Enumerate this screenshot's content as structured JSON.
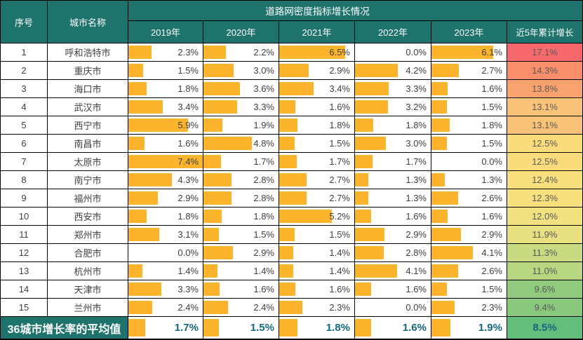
{
  "header": {
    "col_no": "序号",
    "col_city": "城市名称",
    "group_title": "道路网密度指标增长情况",
    "year_cols": [
      "2019年",
      "2020年",
      "2021年",
      "2022年",
      "2023年"
    ],
    "col_total": "近5年累计增长"
  },
  "colors": {
    "header_bg": "#1E736C",
    "bar": "#FBB42C",
    "grid": "#000000",
    "footer_text": "#15697E",
    "value_text": "#3F3F3F",
    "total_text": "#595959",
    "footer_total_bg": "#63BE7B"
  },
  "bar_scale_max": 7.4,
  "rows": [
    {
      "no": "1",
      "city": "呼和浩特市",
      "values": [
        "2.3%",
        "2.2%",
        "6.5%",
        "0.0%",
        "6.1%"
      ],
      "nums": [
        2.3,
        2.2,
        6.5,
        0.0,
        6.1
      ],
      "total": "17.1%",
      "total_bg": "#F8696B"
    },
    {
      "no": "2",
      "city": "重庆市",
      "values": [
        "1.5%",
        "3.0%",
        "2.9%",
        "4.2%",
        "2.7%"
      ],
      "nums": [
        1.5,
        3.0,
        2.9,
        4.2,
        2.7
      ],
      "total": "14.3%",
      "total_bg": "#F98E6C"
    },
    {
      "no": "3",
      "city": "海口市",
      "values": [
        "1.8%",
        "3.6%",
        "3.4%",
        "3.3%",
        "1.6%"
      ],
      "nums": [
        1.8,
        3.6,
        3.4,
        3.3,
        1.6
      ],
      "total": "13.8%",
      "total_bg": "#FAA36E"
    },
    {
      "no": "4",
      "city": "武汉市",
      "values": [
        "3.4%",
        "3.3%",
        "1.6%",
        "3.2%",
        "1.5%"
      ],
      "nums": [
        3.4,
        3.3,
        1.6,
        3.2,
        1.5
      ],
      "total": "13.1%",
      "total_bg": "#FBC377"
    },
    {
      "no": "5",
      "city": "西宁市",
      "values": [
        "5.9%",
        "1.9%",
        "1.8%",
        "1.8%",
        "1.8%"
      ],
      "nums": [
        5.9,
        1.9,
        1.8,
        1.8,
        1.8
      ],
      "total": "13.1%",
      "total_bg": "#FBC377"
    },
    {
      "no": "6",
      "city": "南昌市",
      "values": [
        "1.6%",
        "4.8%",
        "1.5%",
        "3.0%",
        "1.5%"
      ],
      "nums": [
        1.6,
        4.8,
        1.5,
        3.0,
        1.5
      ],
      "total": "12.5%",
      "total_bg": "#FBDC7D"
    },
    {
      "no": "7",
      "city": "太原市",
      "values": [
        "7.4%",
        "1.7%",
        "1.7%",
        "1.7%",
        "0.0%"
      ],
      "nums": [
        7.4,
        1.7,
        1.7,
        1.7,
        0.0
      ],
      "total": "12.5%",
      "total_bg": "#FBDC7D"
    },
    {
      "no": "8",
      "city": "南宁市",
      "values": [
        "4.3%",
        "2.8%",
        "2.7%",
        "1.3%",
        "1.3%"
      ],
      "nums": [
        4.3,
        2.8,
        2.7,
        1.3,
        1.3
      ],
      "total": "12.4%",
      "total_bg": "#FADF7E"
    },
    {
      "no": "9",
      "city": "福州市",
      "values": [
        "2.9%",
        "2.8%",
        "2.7%",
        "1.3%",
        "2.6%"
      ],
      "nums": [
        2.9,
        2.8,
        2.7,
        1.3,
        2.6
      ],
      "total": "12.3%",
      "total_bg": "#F8E07E"
    },
    {
      "no": "10",
      "city": "西安市",
      "values": [
        "1.8%",
        "1.8%",
        "5.2%",
        "1.6%",
        "1.6%"
      ],
      "nums": [
        1.8,
        1.8,
        5.2,
        1.6,
        1.6
      ],
      "total": "12.0%",
      "total_bg": "#F1E181"
    },
    {
      "no": "11",
      "city": "郑州市",
      "values": [
        "3.1%",
        "1.5%",
        "1.5%",
        "2.9%",
        "2.9%"
      ],
      "nums": [
        3.1,
        1.5,
        1.5,
        2.9,
        2.9
      ],
      "total": "11.9%",
      "total_bg": "#E9E082"
    },
    {
      "no": "12",
      "city": "合肥市",
      "values": [
        "0.0%",
        "2.9%",
        "1.4%",
        "2.8%",
        "4.1%"
      ],
      "nums": [
        0.0,
        2.9,
        1.4,
        2.8,
        4.1
      ],
      "total": "11.3%",
      "total_bg": "#C8DB80"
    },
    {
      "no": "13",
      "city": "杭州市",
      "values": [
        "1.4%",
        "1.4%",
        "1.4%",
        "4.1%",
        "2.6%"
      ],
      "nums": [
        1.4,
        1.4,
        1.4,
        4.1,
        2.6
      ],
      "total": "11.0%",
      "total_bg": "#B8D780"
    },
    {
      "no": "14",
      "city": "天津市",
      "values": [
        "3.3%",
        "1.6%",
        "1.6%",
        "1.6%",
        "1.5%"
      ],
      "nums": [
        3.3,
        1.6,
        1.6,
        1.6,
        1.5
      ],
      "total": "9.6%",
      "total_bg": "#90CB7D"
    },
    {
      "no": "15",
      "city": "兰州市",
      "values": [
        "2.4%",
        "2.4%",
        "2.3%",
        "0.0%",
        "2.3%"
      ],
      "nums": [
        2.4,
        2.4,
        2.3,
        0.0,
        2.3
      ],
      "total": "9.4%",
      "total_bg": "#8AC97D"
    }
  ],
  "footer": {
    "label": "36城市增长率的平均值",
    "values": [
      "1.7%",
      "1.5%",
      "1.8%",
      "1.6%",
      "1.9%"
    ],
    "nums": [
      1.7,
      1.5,
      1.8,
      1.6,
      1.9
    ],
    "total": "8.5%"
  },
  "chart_data": {
    "type": "table",
    "title": "道路网密度指标增长情况",
    "columns": [
      "序号",
      "城市名称",
      "2019年",
      "2020年",
      "2021年",
      "2022年",
      "2023年",
      "近5年累计增长"
    ],
    "unit": "%",
    "rows": [
      [
        1,
        "呼和浩特市",
        2.3,
        2.2,
        6.5,
        0.0,
        6.1,
        17.1
      ],
      [
        2,
        "重庆市",
        1.5,
        3.0,
        2.9,
        4.2,
        2.7,
        14.3
      ],
      [
        3,
        "海口市",
        1.8,
        3.6,
        3.4,
        3.3,
        1.6,
        13.8
      ],
      [
        4,
        "武汉市",
        3.4,
        3.3,
        1.6,
        3.2,
        1.5,
        13.1
      ],
      [
        5,
        "西宁市",
        5.9,
        1.9,
        1.8,
        1.8,
        1.8,
        13.1
      ],
      [
        6,
        "南昌市",
        1.6,
        4.8,
        1.5,
        3.0,
        1.5,
        12.5
      ],
      [
        7,
        "太原市",
        7.4,
        1.7,
        1.7,
        1.7,
        0.0,
        12.5
      ],
      [
        8,
        "南宁市",
        4.3,
        2.8,
        2.7,
        1.3,
        1.3,
        12.4
      ],
      [
        9,
        "福州市",
        2.9,
        2.8,
        2.7,
        1.3,
        2.6,
        12.3
      ],
      [
        10,
        "西安市",
        1.8,
        1.8,
        5.2,
        1.6,
        1.6,
        12.0
      ],
      [
        11,
        "郑州市",
        3.1,
        1.5,
        1.5,
        2.9,
        2.9,
        11.9
      ],
      [
        12,
        "合肥市",
        0.0,
        2.9,
        1.4,
        2.8,
        4.1,
        11.3
      ],
      [
        13,
        "杭州市",
        1.4,
        1.4,
        1.4,
        4.1,
        2.6,
        11.0
      ],
      [
        14,
        "天津市",
        3.3,
        1.6,
        1.6,
        1.6,
        1.5,
        9.6
      ],
      [
        15,
        "兰州市",
        2.4,
        2.4,
        2.3,
        0.0,
        2.3,
        9.4
      ],
      [
        "",
        "36城市增长率的平均值",
        1.7,
        1.5,
        1.8,
        1.6,
        1.9,
        8.5
      ]
    ],
    "layout_hints": {
      "data_bars": "orange bars in year columns scaled to max 7.4%",
      "color_scale": "red-yellow-green scale on cumulative growth column (17.1% red → 8.5% green)"
    }
  }
}
